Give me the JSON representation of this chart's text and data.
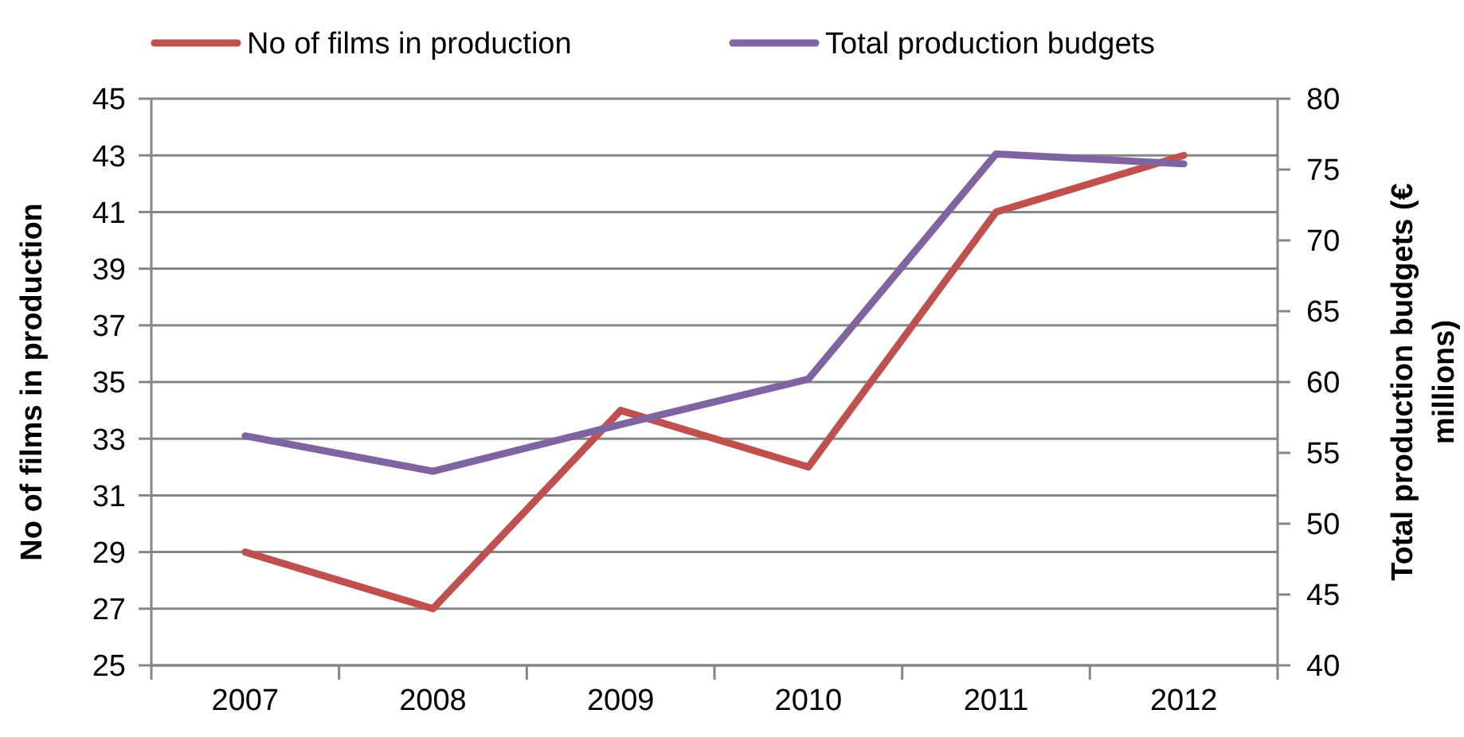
{
  "chart_data": {
    "type": "line",
    "categories": [
      "2007",
      "2008",
      "2009",
      "2010",
      "2011",
      "2012"
    ],
    "series": [
      {
        "name": "No of films in production",
        "color": "#c0504d",
        "values": [
          29,
          27,
          34,
          32,
          41,
          43
        ]
      },
      {
        "name": "Total production budgets",
        "color": "#8064a2",
        "axis": "y2",
        "values": [
          56.2,
          53.7,
          57.0,
          60.2,
          76.1,
          75.4
        ]
      }
    ],
    "ylabel": "No of films in production",
    "y2label": "Total production budgets (€ millions)",
    "ylim": [
      25,
      45
    ],
    "yticks": [
      25,
      27,
      29,
      31,
      33,
      35,
      37,
      39,
      41,
      43,
      45
    ],
    "y2lim": [
      40,
      80
    ],
    "y2ticks": [
      40,
      45,
      50,
      55,
      60,
      65,
      70,
      75,
      80
    ],
    "grid": "y",
    "legend": "top",
    "marker": "none",
    "line_style": "solid"
  }
}
